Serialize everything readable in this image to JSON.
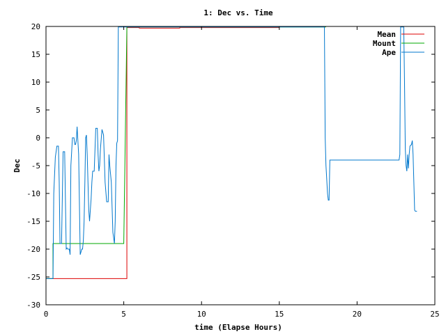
{
  "chart_data": {
    "type": "line",
    "title": "1: Dec vs. Time",
    "xlabel": "time (Elapse Hours)",
    "ylabel": "Dec",
    "xlim": [
      0,
      25
    ],
    "ylim": [
      -30,
      20
    ],
    "xticks": [
      0,
      5,
      10,
      15,
      20,
      25
    ],
    "yticks": [
      -30,
      -25,
      -20,
      -15,
      -10,
      -5,
      0,
      5,
      10,
      15,
      20
    ],
    "grid": false,
    "legend_position": "top-right",
    "series": [
      {
        "name": "Mean",
        "color": "#dd0000",
        "x": [
          0,
          0.45,
          0.45,
          5.2,
          5.2,
          6,
          6,
          8.6,
          8.6,
          15
        ],
        "y": [
          -25.3,
          -25.3,
          -25.3,
          -25.3,
          19.8,
          19.8,
          19.7,
          19.7,
          19.8,
          19.8
        ]
      },
      {
        "name": "Mount",
        "color": "#00aa00",
        "x": [
          0,
          0.45,
          0.45,
          5.0,
          5.2,
          18.0
        ],
        "y": [
          -25.3,
          -25.3,
          -19.0,
          -19.0,
          19.9,
          19.9
        ]
      },
      {
        "name": "Ape",
        "color": "#0077cc",
        "x": [
          0,
          0.45,
          0.5,
          0.6,
          0.7,
          0.8,
          0.85,
          0.9,
          1.0,
          1.1,
          1.15,
          1.2,
          1.3,
          1.35,
          1.4,
          1.5,
          1.55,
          1.6,
          1.7,
          1.75,
          1.8,
          1.85,
          1.9,
          1.95,
          2.0,
          2.1,
          2.2,
          2.3,
          2.35,
          2.4,
          2.45,
          2.5,
          2.55,
          2.6,
          2.65,
          2.7,
          2.75,
          2.8,
          2.9,
          2.95,
          3.0,
          3.1,
          3.2,
          3.3,
          3.35,
          3.4,
          3.45,
          3.5,
          3.6,
          3.7,
          3.8,
          3.9,
          4.0,
          4.05,
          4.1,
          4.2,
          4.3,
          4.4,
          4.45,
          4.5,
          4.55,
          4.6,
          4.65,
          4.7,
          4.8,
          4.9,
          5.0,
          5.05,
          5.1,
          5.15,
          5.2,
          6.0,
          10.0,
          15.0,
          17.9,
          17.95,
          18.0,
          18.1,
          18.15,
          18.2,
          18.25,
          18.3,
          18.35,
          22.7,
          22.75,
          22.8,
          22.9,
          23.0,
          23.05,
          23.1,
          23.15,
          23.2,
          23.25,
          23.3,
          23.35,
          23.4,
          23.5,
          23.55,
          23.6,
          23.65,
          23.7,
          23.75,
          23.8,
          23.85
        ],
        "y": [
          -25.3,
          -25.3,
          -10,
          -3.5,
          -1.5,
          -1.5,
          -8,
          -19,
          -19,
          -2.5,
          -2.5,
          -2.5,
          -20,
          -19.8,
          -20,
          -20,
          -21,
          -5,
          0,
          0,
          0,
          -1.2,
          -1.2,
          -0.5,
          2,
          -3,
          -21,
          -20,
          -20,
          -18.5,
          -15,
          -8,
          0,
          0.5,
          -3,
          -8,
          -13,
          -15,
          -11,
          -8,
          -6,
          -6,
          1.7,
          1.7,
          -3,
          -6,
          -5,
          -2,
          1.5,
          0.5,
          -8,
          -11.5,
          -11.5,
          -3,
          -5,
          -8,
          -17,
          -19,
          -15,
          -5,
          -1,
          -0.5,
          19.9,
          19.9,
          19.9,
          19.9,
          19.9,
          19.9,
          19.9,
          19.9,
          19.9,
          19.9,
          19.9,
          19.9,
          19.9,
          0,
          -5,
          -10,
          -11.2,
          -11.2,
          -4,
          -4,
          -4,
          -4,
          -3,
          19.9,
          19.9,
          19.9,
          10,
          -2,
          -5,
          -6,
          -3,
          -5.5,
          -3,
          -1.5,
          -1.2,
          -0.5,
          -3,
          -8,
          -13,
          -13.2,
          -13.2,
          -13.2
        ]
      }
    ]
  }
}
